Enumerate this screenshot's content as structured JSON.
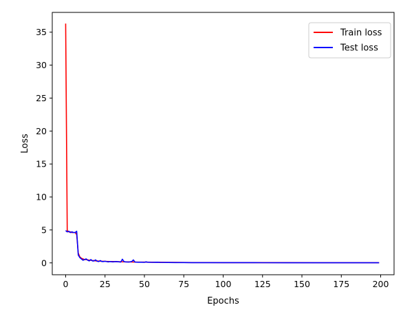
{
  "chart_data": {
    "type": "line",
    "xlabel": "Epochs",
    "ylabel": "Loss",
    "xlim": [
      -8.5,
      208.5
    ],
    "ylim": [
      -1.8,
      38.0
    ],
    "xticks": [
      0,
      25,
      50,
      75,
      100,
      125,
      150,
      175,
      200
    ],
    "yticks": [
      0,
      5,
      10,
      15,
      20,
      25,
      30,
      35
    ],
    "grid": false,
    "legend_position": "top-right",
    "series": [
      {
        "name": "Train loss",
        "color": "#ff0000",
        "x": [
          0,
          1,
          2,
          3,
          4,
          5,
          6,
          7,
          8,
          9,
          10,
          11,
          12,
          13,
          14,
          15,
          16,
          17,
          18,
          19,
          20,
          22,
          24,
          26,
          28,
          30,
          32,
          34,
          36,
          38,
          40,
          42,
          44,
          46,
          48,
          50,
          55,
          60,
          65,
          70,
          75,
          80,
          90,
          100,
          120,
          140,
          160,
          180,
          199
        ],
        "y": [
          36.3,
          4.9,
          4.7,
          4.7,
          4.6,
          4.6,
          4.6,
          4.3,
          1.5,
          0.9,
          0.7,
          0.6,
          0.5,
          0.5,
          0.45,
          0.4,
          0.4,
          0.35,
          0.35,
          0.3,
          0.3,
          0.25,
          0.25,
          0.22,
          0.2,
          0.2,
          0.18,
          0.18,
          0.16,
          0.15,
          0.15,
          0.14,
          0.13,
          0.12,
          0.12,
          0.11,
          0.1,
          0.09,
          0.08,
          0.07,
          0.06,
          0.05,
          0.05,
          0.04,
          0.03,
          0.03,
          0.02,
          0.02,
          0.02
        ]
      },
      {
        "name": "Test loss",
        "color": "#0000ff",
        "x": [
          0,
          1,
          2,
          3,
          4,
          5,
          6,
          7,
          8,
          9,
          10,
          11,
          12,
          13,
          14,
          15,
          16,
          17,
          18,
          19,
          20,
          21,
          22,
          23,
          24,
          25,
          26,
          27,
          28,
          29,
          30,
          32,
          34,
          35,
          36,
          37,
          38,
          40,
          42,
          43,
          44,
          46,
          48,
          50,
          51,
          52,
          55,
          58,
          60,
          65,
          70,
          75,
          80,
          90,
          100,
          120,
          140,
          160,
          180,
          199
        ],
        "y": [
          4.9,
          4.7,
          4.8,
          4.6,
          4.7,
          4.6,
          4.6,
          4.8,
          1.2,
          0.8,
          0.6,
          0.4,
          0.5,
          0.6,
          0.4,
          0.3,
          0.5,
          0.3,
          0.3,
          0.45,
          0.25,
          0.2,
          0.35,
          0.2,
          0.2,
          0.25,
          0.2,
          0.15,
          0.2,
          0.18,
          0.15,
          0.2,
          0.15,
          0.12,
          0.55,
          0.2,
          0.15,
          0.12,
          0.2,
          0.45,
          0.12,
          0.1,
          0.1,
          0.08,
          0.15,
          0.1,
          0.08,
          0.1,
          0.07,
          0.06,
          0.05,
          0.05,
          0.04,
          0.04,
          0.03,
          0.03,
          0.02,
          0.02,
          0.02,
          0.02
        ]
      }
    ]
  }
}
